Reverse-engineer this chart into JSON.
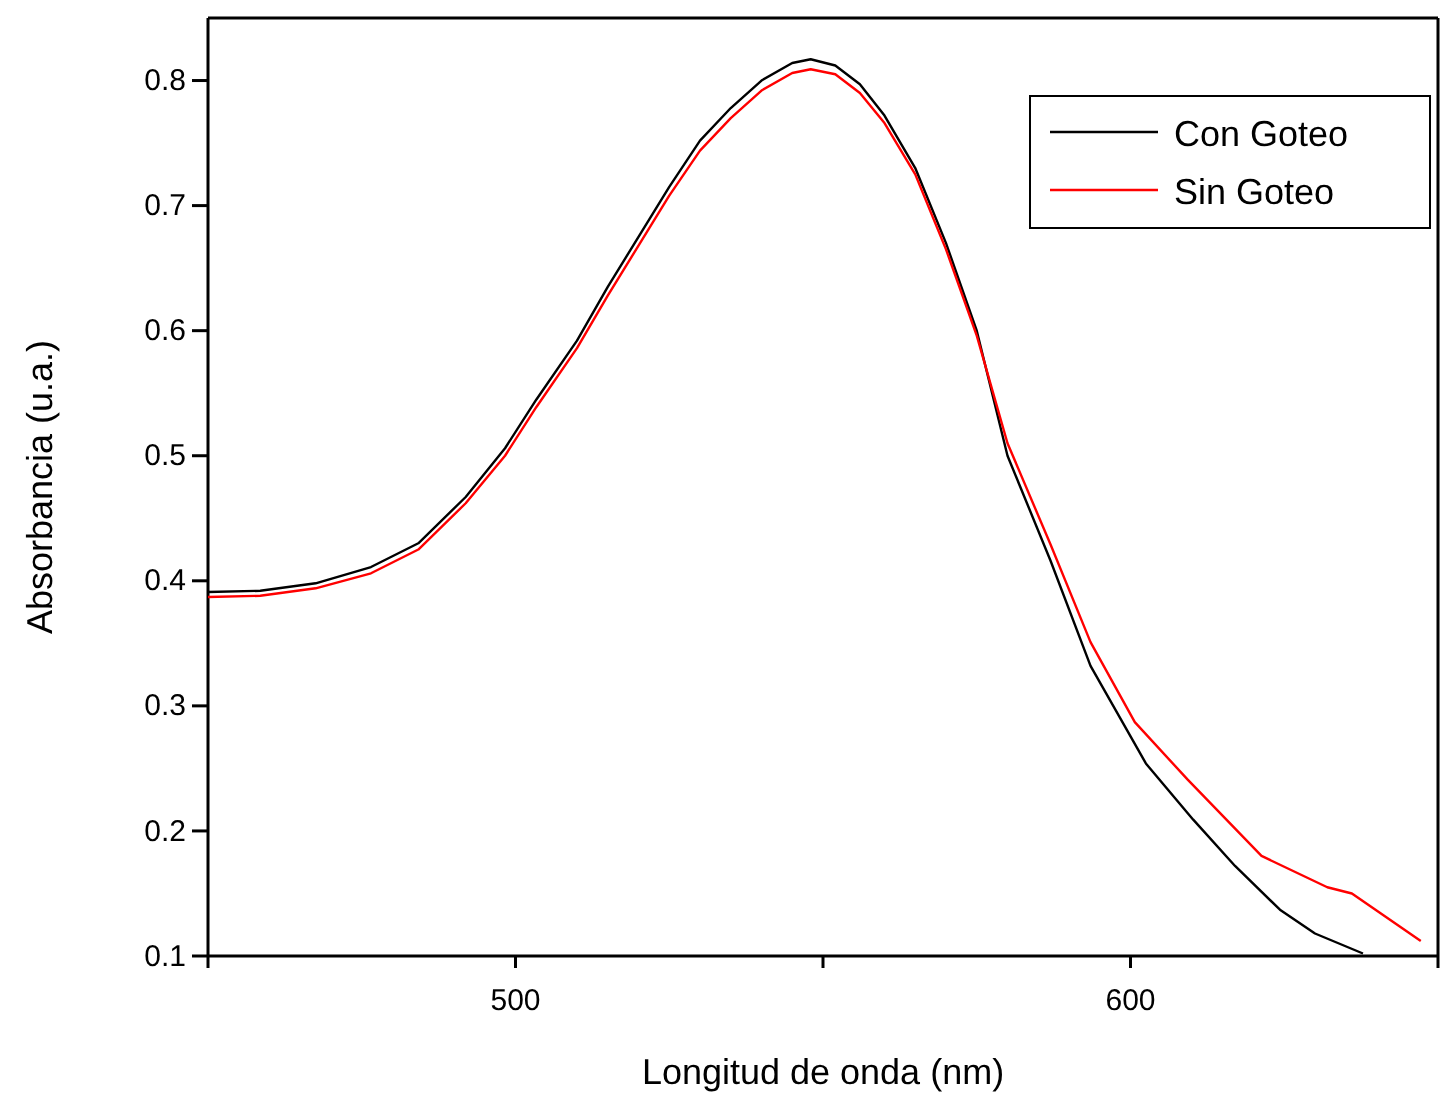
{
  "chart_data": {
    "type": "line",
    "xlabel": "Longitud de onda (nm)",
    "ylabel": "Absorbancia (u.a.)",
    "xlim": [
      450,
      650
    ],
    "xticks": [
      {
        "value": 450,
        "label": null
      },
      500,
      {
        "value": 550,
        "label": null
      },
      600,
      {
        "value": 650,
        "label": null
      }
    ],
    "ylim": [
      0.1,
      0.85
    ],
    "yticks": [
      0.1,
      0.2,
      0.3,
      0.4,
      0.5,
      0.6,
      0.7,
      0.8
    ],
    "grid": false,
    "legend": "top right",
    "marker": "none",
    "line_style": "solid",
    "series": [
      {
        "name": "Con Goteo",
        "color": "#000000",
        "x": [
          450,
          458.5,
          467.5,
          476.5,
          484.2,
          491.9,
          498.3,
          503.4,
          510,
          515,
          520,
          525,
          530,
          535,
          540,
          545,
          548,
          552,
          556,
          560,
          565,
          570,
          575,
          580,
          587,
          593.5,
          602.5,
          610.2,
          617,
          624.3,
          630,
          637.8
        ],
        "values": [
          0.391,
          0.392,
          0.398,
          0.411,
          0.43,
          0.467,
          0.506,
          0.545,
          0.592,
          0.635,
          0.675,
          0.715,
          0.752,
          0.778,
          0.8,
          0.814,
          0.817,
          0.812,
          0.797,
          0.772,
          0.73,
          0.67,
          0.6,
          0.5,
          0.416,
          0.332,
          0.254,
          0.209,
          0.172,
          0.137,
          0.118,
          0.102
        ]
      },
      {
        "name": "Sin Goteo",
        "color": "#ff0000",
        "x": [
          450,
          458.5,
          467.5,
          476.5,
          484.2,
          491.9,
          498.3,
          503.4,
          510,
          515,
          520,
          525,
          530,
          535,
          540,
          545,
          548,
          552,
          556,
          560,
          565,
          570,
          575,
          580,
          587,
          593.5,
          600.7,
          609.3,
          621.3,
          632,
          636,
          647.2
        ],
        "values": [
          0.387,
          0.388,
          0.394,
          0.406,
          0.425,
          0.462,
          0.5,
          0.539,
          0.586,
          0.628,
          0.668,
          0.708,
          0.744,
          0.77,
          0.792,
          0.806,
          0.809,
          0.805,
          0.79,
          0.766,
          0.725,
          0.665,
          0.596,
          0.51,
          0.429,
          0.351,
          0.287,
          0.241,
          0.18,
          0.155,
          0.15,
          0.112
        ]
      }
    ]
  }
}
